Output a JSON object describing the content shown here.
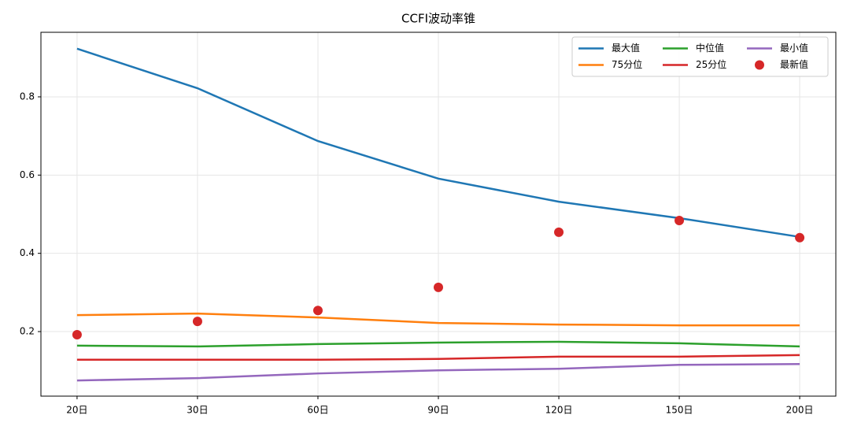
{
  "chart_data": {
    "type": "line",
    "title": "CCFI波动率锥",
    "categories": [
      "20日",
      "30日",
      "60日",
      "90日",
      "120日",
      "150日",
      "200日"
    ],
    "series": [
      {
        "name": "最大值",
        "color": "#1f77b4",
        "values": [
          0.923,
          0.822,
          0.687,
          0.591,
          0.532,
          0.49,
          0.442
        ]
      },
      {
        "name": "75分位",
        "color": "#ff7f0e",
        "values": [
          0.242,
          0.246,
          0.236,
          0.222,
          0.218,
          0.216,
          0.216
        ]
      },
      {
        "name": "中位值",
        "color": "#2ca02c",
        "values": [
          0.164,
          0.162,
          0.168,
          0.172,
          0.174,
          0.17,
          0.162
        ]
      },
      {
        "name": "25分位",
        "color": "#d62728",
        "values": [
          0.128,
          0.128,
          0.128,
          0.13,
          0.136,
          0.136,
          0.14
        ]
      },
      {
        "name": "最小值",
        "color": "#9467bd",
        "values": [
          0.075,
          0.081,
          0.093,
          0.101,
          0.105,
          0.115,
          0.117
        ]
      },
      {
        "name": "最新值",
        "color": "#d62728",
        "type": "scatter",
        "values": [
          0.192,
          0.226,
          0.254,
          0.313,
          0.454,
          0.484,
          0.44
        ]
      }
    ],
    "ylim": [
      0.035,
      0.965
    ],
    "yticks": [
      0.2,
      0.4,
      0.6,
      0.8
    ],
    "grid": true,
    "legend": "upper right"
  }
}
